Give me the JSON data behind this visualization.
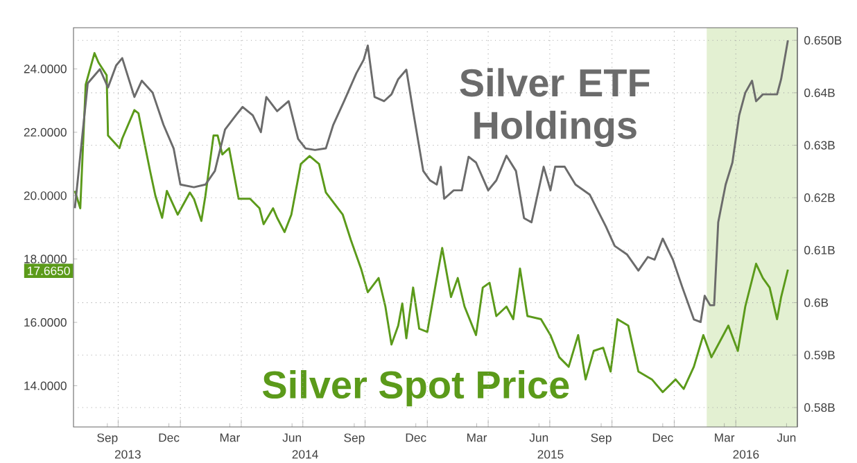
{
  "chart_data": {
    "type": "line",
    "grid": true,
    "xlim": [
      "2013-07-27",
      "2016-07-01"
    ],
    "xticks": [
      {
        "value": "2013-09-15",
        "label": "Sep"
      },
      {
        "value": "2013-12-15",
        "label": "Dec"
      },
      {
        "value": "2014-03-15",
        "label": "Mar"
      },
      {
        "value": "2014-06-15",
        "label": "Jun"
      },
      {
        "value": "2014-09-15",
        "label": "Sep"
      },
      {
        "value": "2014-12-15",
        "label": "Dec"
      },
      {
        "value": "2015-03-15",
        "label": "Mar"
      },
      {
        "value": "2015-06-15",
        "label": "Jun"
      },
      {
        "value": "2015-09-15",
        "label": "Sep"
      },
      {
        "value": "2015-12-15",
        "label": "Dec"
      },
      {
        "value": "2016-03-15",
        "label": "Mar"
      },
      {
        "value": "2016-06-15",
        "label": "Jun"
      },
      {
        "value": "2013-10-01",
        "label": null
      },
      {
        "value": "2014-01-01",
        "label": null
      },
      {
        "value": "2014-04-01",
        "label": null
      },
      {
        "value": "2014-07-01",
        "label": null
      },
      {
        "value": "2014-10-01",
        "label": null
      },
      {
        "value": "2015-01-01",
        "label": null
      },
      {
        "value": "2015-04-01",
        "label": null
      },
      {
        "value": "2015-07-01",
        "label": null
      },
      {
        "value": "2015-10-01",
        "label": null
      },
      {
        "value": "2016-01-01",
        "label": null
      },
      {
        "value": "2016-04-01",
        "label": null
      }
    ],
    "ylim": [
      12.7,
      25.3
    ],
    "yticks": [
      {
        "value": 14,
        "label": "14.0000"
      },
      {
        "value": 16,
        "label": "16.0000"
      },
      {
        "value": 18,
        "label": "18.0000"
      },
      {
        "value": 20,
        "label": "20.0000"
      },
      {
        "value": 22,
        "label": "22.0000"
      },
      {
        "value": 24,
        "label": "24.0000"
      }
    ],
    "y2lim": [
      0.5763,
      0.6524
    ],
    "y2ticks": [
      {
        "value": 0.58,
        "label": "0.58B"
      },
      {
        "value": 0.59,
        "label": "0.59B"
      },
      {
        "value": 0.6,
        "label": "0.6B"
      },
      {
        "value": 0.61,
        "label": "0.61B"
      },
      {
        "value": 0.62,
        "label": "0.62B"
      },
      {
        "value": 0.63,
        "label": "0.63B"
      },
      {
        "value": 0.64,
        "label": "0.64B"
      },
      {
        "value": 0.65,
        "label": "0.650B"
      }
    ],
    "bands": [
      {
        "axis": "x",
        "from": "2016-02-18",
        "to": "2016-07-01",
        "color": "#e3f0d2"
      }
    ],
    "annotations": [
      "17.6650",
      "2013",
      "2014",
      "2015",
      "2016"
    ],
    "series": [
      {
        "name": "Silver Spot Price",
        "color": "#5b9a1a",
        "x": [
          "2013-07-29",
          "2013-08-06",
          "2013-08-14",
          "2013-08-27",
          "2013-09-02",
          "2013-09-14",
          "2013-09-16",
          "2013-10-03",
          "2013-10-07",
          "2013-10-25",
          "2013-10-31",
          "2013-11-17",
          "2013-11-25",
          "2013-12-05",
          "2013-12-12",
          "2013-12-28",
          "2014-01-15",
          "2014-01-21",
          "2014-02-01",
          "2014-02-07",
          "2014-02-19",
          "2014-02-25",
          "2014-03-04",
          "2014-03-14",
          "2014-03-28",
          "2014-04-14",
          "2014-04-28",
          "2014-05-04",
          "2014-05-18",
          "2014-05-24",
          "2014-06-04",
          "2014-06-14",
          "2014-06-28",
          "2014-07-11",
          "2014-07-25",
          "2014-08-04",
          "2014-08-29",
          "2014-09-10",
          "2014-09-25",
          "2014-10-05",
          "2014-10-21",
          "2014-10-31",
          "2014-11-09",
          "2014-11-19",
          "2014-11-25",
          "2014-12-01",
          "2014-12-11",
          "2014-12-20",
          "2015-01-01",
          "2015-01-15",
          "2015-01-23",
          "2015-02-05",
          "2015-02-15",
          "2015-02-25",
          "2015-03-14",
          "2015-03-24",
          "2015-04-03",
          "2015-04-13",
          "2015-04-28",
          "2015-05-08",
          "2015-05-18",
          "2015-05-29",
          "2015-06-18",
          "2015-07-02",
          "2015-07-15",
          "2015-07-29",
          "2015-08-12",
          "2015-08-23",
          "2015-09-04",
          "2015-09-18",
          "2015-09-29",
          "2015-10-09",
          "2015-10-25",
          "2015-11-09",
          "2015-11-29",
          "2015-12-15",
          "2016-01-03",
          "2016-01-15",
          "2016-01-30",
          "2016-02-13",
          "2016-02-25",
          "2016-03-11",
          "2016-03-21",
          "2016-04-04",
          "2016-04-15",
          "2016-05-01",
          "2016-05-11",
          "2016-05-21",
          "2016-06-01",
          "2016-06-07",
          "2016-06-17"
        ],
        "values": [
          20.15,
          19.6,
          23.5,
          24.5,
          24.2,
          23.8,
          21.9,
          21.5,
          21.8,
          22.7,
          22.6,
          20.8,
          20.0,
          19.3,
          20.15,
          19.4,
          20.1,
          19.9,
          19.2,
          20.0,
          21.9,
          21.9,
          21.3,
          21.5,
          19.9,
          19.9,
          19.6,
          19.1,
          19.6,
          19.3,
          18.85,
          19.4,
          21.0,
          21.25,
          21.0,
          20.1,
          19.4,
          18.6,
          17.7,
          16.95,
          17.4,
          16.5,
          15.3,
          15.9,
          16.6,
          15.5,
          17.1,
          15.8,
          15.7,
          17.4,
          18.35,
          16.8,
          17.4,
          16.5,
          15.6,
          17.1,
          17.25,
          16.2,
          16.5,
          16.1,
          17.7,
          16.2,
          16.1,
          15.6,
          14.9,
          14.6,
          15.6,
          14.2,
          15.1,
          15.2,
          14.45,
          16.1,
          15.9,
          14.45,
          14.2,
          13.8,
          14.2,
          13.9,
          14.6,
          15.6,
          14.9,
          15.5,
          15.9,
          15.1,
          16.5,
          17.85,
          17.4,
          17.1,
          16.1,
          16.8,
          17.665
        ]
      },
      {
        "name": "Silver ETF Holdings",
        "color": "#6b6b6b",
        "axis": "y2",
        "x": [
          "2013-07-29",
          "2013-08-17",
          "2013-09-04",
          "2013-09-16",
          "2013-09-28",
          "2013-10-07",
          "2013-10-25",
          "2013-11-05",
          "2013-11-21",
          "2013-12-07",
          "2013-12-22",
          "2014-01-01",
          "2014-01-21",
          "2014-02-07",
          "2014-02-21",
          "2014-03-08",
          "2014-03-24",
          "2014-04-03",
          "2014-04-18",
          "2014-04-30",
          "2014-05-08",
          "2014-05-24",
          "2014-06-10",
          "2014-06-24",
          "2014-07-05",
          "2014-07-19",
          "2014-08-04",
          "2014-08-15",
          "2014-08-31",
          "2014-09-18",
          "2014-09-29",
          "2014-10-05",
          "2014-10-15",
          "2014-10-29",
          "2014-11-09",
          "2014-11-19",
          "2014-12-01",
          "2014-12-11",
          "2014-12-26",
          "2015-01-05",
          "2015-01-15",
          "2015-01-21",
          "2015-01-26",
          "2015-02-09",
          "2015-02-21",
          "2015-03-03",
          "2015-03-14",
          "2015-04-01",
          "2015-04-13",
          "2015-04-28",
          "2015-05-12",
          "2015-05-24",
          "2015-06-04",
          "2015-06-22",
          "2015-07-02",
          "2015-07-09",
          "2015-07-23",
          "2015-08-08",
          "2015-08-29",
          "2015-09-22",
          "2015-10-05",
          "2015-10-23",
          "2015-11-09",
          "2015-11-23",
          "2015-12-03",
          "2015-12-15",
          "2015-12-30",
          "2016-01-13",
          "2016-01-30",
          "2016-02-09",
          "2016-02-15",
          "2016-02-23",
          "2016-02-29",
          "2016-03-06",
          "2016-03-17",
          "2016-03-27",
          "2016-04-06",
          "2016-04-15",
          "2016-04-25",
          "2016-05-01",
          "2016-05-11",
          "2016-06-01",
          "2016-06-07",
          "2016-06-17"
        ],
        "values": [
          0.618,
          0.6418,
          0.6445,
          0.641,
          0.6452,
          0.6466,
          0.6392,
          0.6423,
          0.64,
          0.6339,
          0.6294,
          0.6225,
          0.622,
          0.6225,
          0.6251,
          0.633,
          0.6357,
          0.6373,
          0.6357,
          0.6325,
          0.6392,
          0.6365,
          0.6384,
          0.6312,
          0.6294,
          0.6291,
          0.6294,
          0.6339,
          0.6384,
          0.6437,
          0.6463,
          0.649,
          0.6392,
          0.6384,
          0.6397,
          0.6426,
          0.6444,
          0.6365,
          0.6251,
          0.6233,
          0.6225,
          0.6259,
          0.6198,
          0.6214,
          0.6214,
          0.6278,
          0.6267,
          0.6214,
          0.6233,
          0.628,
          0.6251,
          0.6161,
          0.6153,
          0.6259,
          0.6214,
          0.6259,
          0.6259,
          0.6225,
          0.6206,
          0.6145,
          0.6108,
          0.6092,
          0.6061,
          0.6087,
          0.6082,
          0.6122,
          0.6082,
          0.6029,
          0.5968,
          0.5963,
          0.6013,
          0.5995,
          0.5995,
          0.6153,
          0.6225,
          0.6267,
          0.6357,
          0.64,
          0.6423,
          0.6384,
          0.6397,
          0.6397,
          0.6426,
          0.65
        ]
      }
    ]
  }
}
